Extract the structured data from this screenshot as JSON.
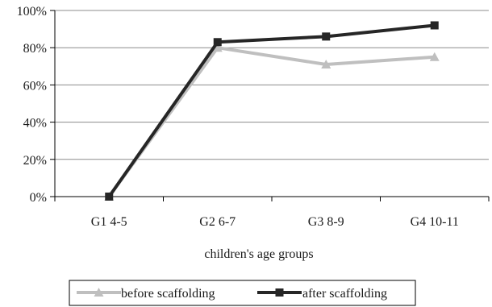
{
  "chart_data": {
    "type": "line",
    "title": "",
    "xlabel": "children's age groups",
    "ylabel": "",
    "categories": [
      "G1 4-5",
      "G2 6-7",
      "G3 8-9",
      "G4 10-11"
    ],
    "ylim": [
      0,
      100
    ],
    "yticks": [
      "0%",
      "20%",
      "40%",
      "60%",
      "80%",
      "100%"
    ],
    "ytick_values": [
      0,
      20,
      40,
      60,
      80,
      100
    ],
    "grid": "horizontal",
    "legend_position": "bottom",
    "series": [
      {
        "name": "before scaffolding",
        "values": [
          0,
          80,
          71,
          75
        ],
        "color": "#bfbfbf",
        "marker": "triangle"
      },
      {
        "name": "after scaffolding",
        "values": [
          0,
          83,
          86,
          92
        ],
        "color": "#262626",
        "marker": "square"
      }
    ]
  }
}
